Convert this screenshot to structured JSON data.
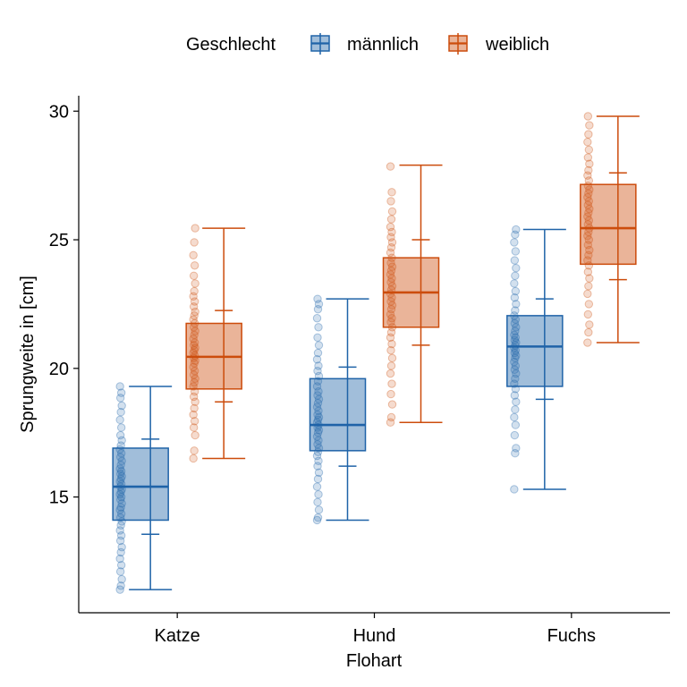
{
  "chart_data": {
    "type": "boxplot",
    "xlabel": "Flohart",
    "ylabel": "Sprungweite in [cm]",
    "categories": [
      "Katze",
      "Hund",
      "Fuchs"
    ],
    "ylim": [
      10.5,
      30.6
    ],
    "yticks": [
      15,
      20,
      25,
      30
    ],
    "grid": false,
    "legend": {
      "title": "Geschlecht",
      "position": "top"
    },
    "series": [
      {
        "name": "männlich",
        "color": "#1f63a8",
        "boxes": [
          {
            "category": "Katze",
            "min": 11.4,
            "q1": 14.1,
            "median": 15.4,
            "q3": 16.9,
            "max": 19.3,
            "ci_low": 13.55,
            "ci_high": 17.25
          },
          {
            "category": "Hund",
            "min": 14.1,
            "q1": 16.8,
            "median": 17.8,
            "q3": 19.6,
            "max": 22.7,
            "ci_low": 16.2,
            "ci_high": 20.05
          },
          {
            "category": "Fuchs",
            "min": 15.3,
            "q1": 19.3,
            "median": 20.85,
            "q3": 22.05,
            "max": 25.4,
            "ci_low": 18.8,
            "ci_high": 22.7
          }
        ],
        "points": [
          [
            11.4,
            11.55,
            11.8,
            12.1,
            12.35,
            12.6,
            12.85,
            13.05,
            13.3,
            13.5,
            13.7,
            13.9,
            14.05,
            14.2,
            14.35,
            14.5,
            14.6,
            14.75,
            14.9,
            15.0,
            15.1,
            15.2,
            15.3,
            15.4,
            15.5,
            15.6,
            15.7,
            15.8,
            15.9,
            16.0,
            16.1,
            16.25,
            16.4,
            16.55,
            16.7,
            16.85,
            17.0,
            17.2,
            17.4,
            17.7,
            18.0,
            18.3,
            18.55,
            18.85,
            19.05,
            19.3
          ],
          [
            14.1,
            14.2,
            14.5,
            14.8,
            15.1,
            15.4,
            15.7,
            15.95,
            16.2,
            16.4,
            16.6,
            16.75,
            16.9,
            17.05,
            17.2,
            17.35,
            17.5,
            17.6,
            17.7,
            17.8,
            17.9,
            18.0,
            18.1,
            18.2,
            18.35,
            18.5,
            18.65,
            18.8,
            18.95,
            19.1,
            19.3,
            19.5,
            19.7,
            19.9,
            20.1,
            20.35,
            20.6,
            20.9,
            21.2,
            21.6,
            21.95,
            22.3,
            22.5,
            22.7
          ],
          [
            15.3,
            16.7,
            16.9,
            17.4,
            17.8,
            18.1,
            18.4,
            18.7,
            18.95,
            19.2,
            19.4,
            19.6,
            19.8,
            19.95,
            20.1,
            20.25,
            20.4,
            20.5,
            20.6,
            20.7,
            20.8,
            20.9,
            21.0,
            21.1,
            21.2,
            21.3,
            21.45,
            21.6,
            21.75,
            21.9,
            22.05,
            22.25,
            22.5,
            22.75,
            23.0,
            23.3,
            23.6,
            23.9,
            24.2,
            24.55,
            24.9,
            25.2,
            25.4
          ]
        ]
      },
      {
        "name": "weiblich",
        "color": "#cc4c0c",
        "boxes": [
          {
            "category": "Katze",
            "min": 16.5,
            "q1": 19.2,
            "median": 20.45,
            "q3": 21.75,
            "max": 25.45,
            "ci_low": 18.7,
            "ci_high": 22.25
          },
          {
            "category": "Hund",
            "min": 17.9,
            "q1": 21.6,
            "median": 22.95,
            "q3": 24.3,
            "max": 27.9,
            "ci_low": 20.9,
            "ci_high": 25.0
          },
          {
            "category": "Fuchs",
            "min": 21.0,
            "q1": 24.05,
            "median": 25.45,
            "q3": 27.15,
            "max": 29.8,
            "ci_low": 23.45,
            "ci_high": 27.6
          }
        ],
        "points": [
          [
            16.5,
            16.8,
            17.4,
            17.7,
            17.95,
            18.2,
            18.45,
            18.7,
            18.9,
            19.1,
            19.3,
            19.45,
            19.6,
            19.75,
            19.9,
            20.05,
            20.2,
            20.3,
            20.4,
            20.5,
            20.6,
            20.7,
            20.8,
            20.9,
            21.0,
            21.15,
            21.3,
            21.45,
            21.6,
            21.75,
            21.9,
            22.05,
            22.2,
            22.4,
            22.6,
            22.8,
            23.0,
            23.3,
            23.6,
            24.0,
            24.4,
            24.9,
            25.45
          ],
          [
            17.9,
            18.1,
            18.6,
            19.0,
            19.4,
            19.8,
            20.1,
            20.4,
            20.7,
            20.95,
            21.2,
            21.4,
            21.6,
            21.8,
            21.95,
            22.1,
            22.3,
            22.45,
            22.6,
            22.75,
            22.9,
            23.05,
            23.2,
            23.35,
            23.5,
            23.65,
            23.8,
            23.95,
            24.1,
            24.3,
            24.5,
            24.7,
            24.9,
            25.1,
            25.3,
            25.5,
            25.8,
            26.1,
            26.5,
            26.85,
            27.85
          ],
          [
            21.0,
            21.4,
            21.7,
            22.1,
            22.5,
            22.9,
            23.2,
            23.5,
            23.75,
            24.0,
            24.2,
            24.4,
            24.6,
            24.8,
            25.0,
            25.15,
            25.3,
            25.45,
            25.6,
            25.75,
            25.9,
            26.05,
            26.2,
            26.35,
            26.5,
            26.65,
            26.8,
            26.95,
            27.1,
            27.3,
            27.5,
            27.7,
            27.95,
            28.2,
            28.5,
            28.8,
            29.1,
            29.45,
            29.8
          ]
        ]
      }
    ]
  }
}
